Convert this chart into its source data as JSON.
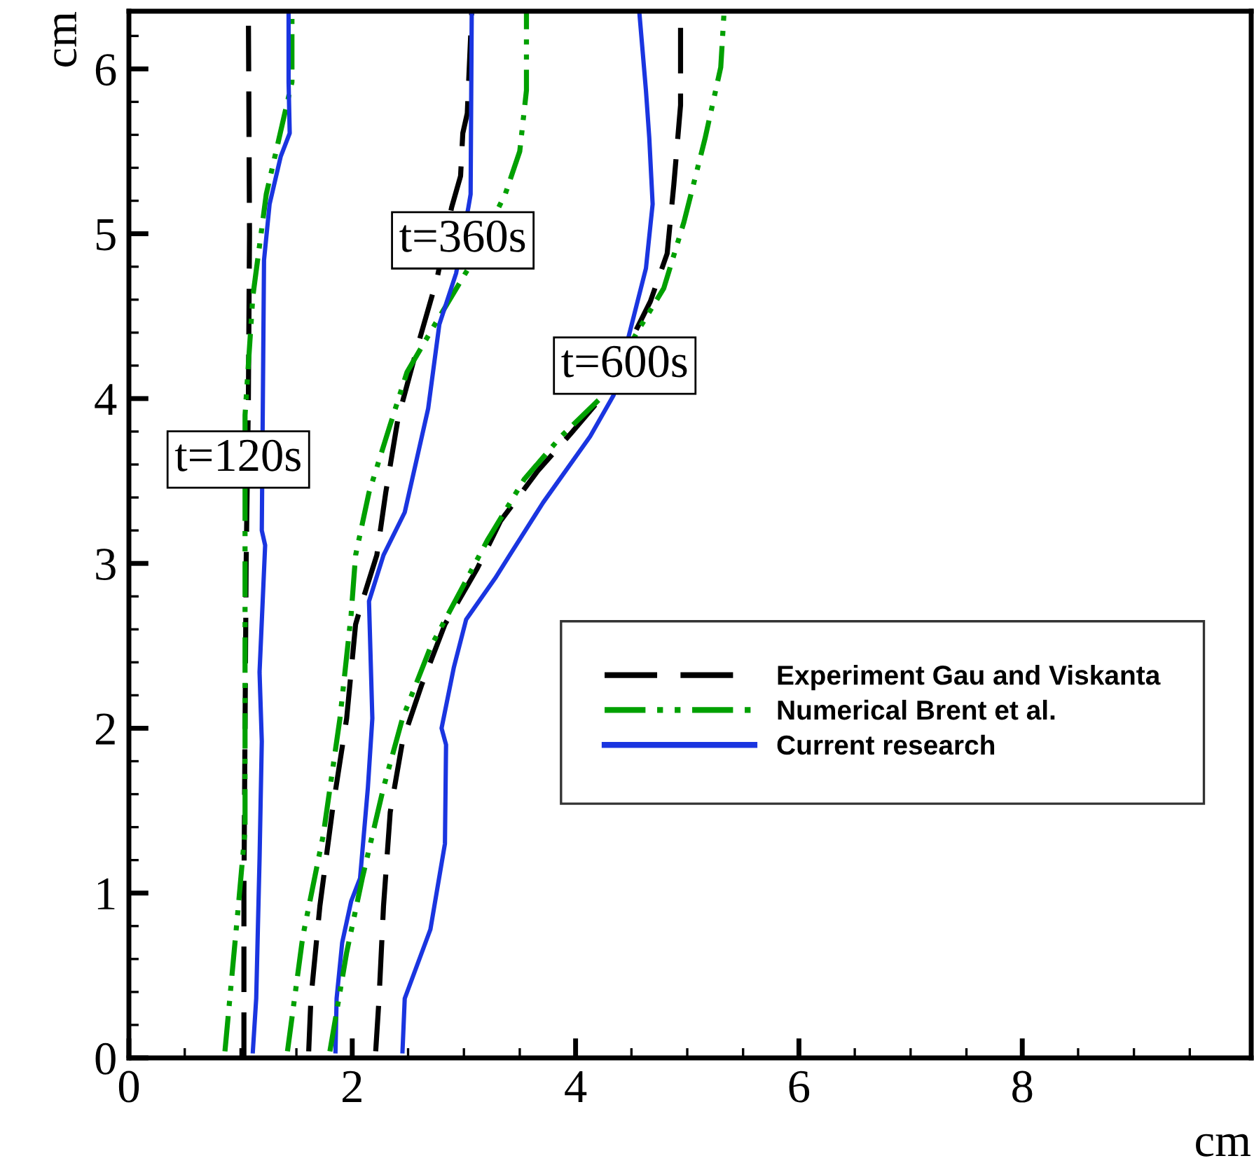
{
  "chart_data": {
    "type": "line",
    "xlabel": "cm",
    "ylabel": "cm",
    "xlim": [
      0,
      10.05
    ],
    "ylim": [
      0,
      6.35
    ],
    "xticks": [
      0,
      {
        "value": 0.5,
        "label": null
      },
      {
        "value": 1,
        "label": null
      },
      {
        "value": 1.5,
        "label": null
      },
      2,
      {
        "value": 2.5,
        "label": null
      },
      {
        "value": 3,
        "label": null
      },
      {
        "value": 3.5,
        "label": null
      },
      4,
      {
        "value": 4.5,
        "label": null
      },
      {
        "value": 5,
        "label": null
      },
      {
        "value": 5.5,
        "label": null
      },
      6,
      {
        "value": 6.5,
        "label": null
      },
      {
        "value": 7,
        "label": null
      },
      {
        "value": 7.5,
        "label": null
      },
      8,
      {
        "value": 8.5,
        "label": null
      },
      {
        "value": 9,
        "label": null
      },
      {
        "value": 9.5,
        "label": null
      }
    ],
    "yticks": [
      0,
      {
        "value": 0.2,
        "label": null
      },
      {
        "value": 0.4,
        "label": null
      },
      {
        "value": 0.6,
        "label": null
      },
      {
        "value": 0.8,
        "label": null
      },
      1,
      {
        "value": 1.2,
        "label": null
      },
      {
        "value": 1.4,
        "label": null
      },
      {
        "value": 1.6,
        "label": null
      },
      {
        "value": 1.8,
        "label": null
      },
      2,
      {
        "value": 2.2,
        "label": null
      },
      {
        "value": 2.4,
        "label": null
      },
      {
        "value": 2.6,
        "label": null
      },
      {
        "value": 2.8,
        "label": null
      },
      3,
      {
        "value": 3.2,
        "label": null
      },
      {
        "value": 3.4,
        "label": null
      },
      {
        "value": 3.6,
        "label": null
      },
      {
        "value": 3.8,
        "label": null
      },
      4,
      {
        "value": 4.2,
        "label": null
      },
      {
        "value": 4.4,
        "label": null
      },
      {
        "value": 4.6,
        "label": null
      },
      {
        "value": 4.8,
        "label": null
      },
      5,
      {
        "value": 5.2,
        "label": null
      },
      {
        "value": 5.4,
        "label": null
      },
      {
        "value": 5.6,
        "label": null
      },
      {
        "value": 5.8,
        "label": null
      },
      6,
      {
        "value": 6.2,
        "label": null
      }
    ],
    "grid": false,
    "legend": "right",
    "marker": "none",
    "annotations": [
      {
        "text": "t=120s",
        "x": 0.98,
        "y": 3.63
      },
      {
        "text": "t=360s",
        "x": 2.99,
        "y": 4.96
      },
      {
        "text": "t=600s",
        "x": 4.44,
        "y": 4.2
      }
    ],
    "series": [
      {
        "name": "Experiment Gau and Viskanta",
        "color": "#000000",
        "line_style": "dashed",
        "x": [
          1.03,
          1.03,
          1.04,
          1.05,
          1.07,
          1.08,
          1.07
        ],
        "values": [
          0,
          1,
          2,
          3,
          4,
          5,
          6.35
        ]
      },
      {
        "name": "Numerical Brent et al.",
        "color": "#00a000",
        "line_style": "dashdotdot",
        "x": [
          0.86,
          0.98,
          1.04,
          1.04,
          1.11,
          1.23,
          1.46,
          1.46
        ],
        "values": [
          0.04,
          0.92,
          1.38,
          3.9,
          4.62,
          5.24,
          5.92,
          6.35
        ]
      },
      {
        "name": "Current research",
        "color": "#1a35e0",
        "line_style": "solid",
        "x": [
          1.11,
          1.14,
          1.17,
          1.19,
          1.17,
          1.22,
          1.19,
          1.21,
          1.26,
          1.36,
          1.44,
          1.43,
          1.43
        ],
        "values": [
          0.04,
          0.36,
          1.21,
          1.92,
          2.34,
          3.11,
          3.2,
          4.84,
          5.18,
          5.47,
          5.61,
          5.92,
          6.35
        ]
      },
      {
        "color": "#000000",
        "line_style": "dashed",
        "x": [
          1.61,
          1.63,
          1.71,
          1.82,
          1.95,
          2.03,
          2.09,
          2.22,
          2.3,
          2.41,
          2.59,
          2.76,
          2.89,
          2.97,
          2.99,
          3.03,
          3.07
        ],
        "values": [
          0.04,
          0.36,
          0.92,
          1.49,
          2.06,
          2.63,
          2.77,
          3.05,
          3.43,
          3.88,
          4.33,
          4.73,
          5.16,
          5.35,
          5.61,
          5.73,
          6.35
        ]
      },
      {
        "color": "#00a000",
        "line_style": "dashdotdot",
        "x": [
          1.42,
          1.55,
          1.57,
          1.74,
          1.89,
          1.99,
          2.03,
          2.15,
          2.33,
          2.49,
          2.74,
          3.04,
          3.37,
          3.5,
          3.56,
          3.56
        ],
        "values": [
          0.04,
          0.7,
          0.78,
          1.35,
          2.06,
          2.69,
          3.05,
          3.43,
          3.82,
          4.16,
          4.45,
          4.79,
          5.24,
          5.5,
          5.87,
          6.35
        ]
      },
      {
        "color": "#1a35e0",
        "line_style": "solid",
        "x": [
          1.85,
          1.86,
          1.91,
          1.99,
          2.07,
          2.14,
          2.18,
          2.15,
          2.28,
          2.47,
          2.68,
          2.78,
          2.93,
          3.04,
          3.06,
          3.07
        ],
        "values": [
          0.04,
          0.36,
          0.7,
          0.95,
          1.09,
          1.64,
          2.06,
          2.77,
          3.05,
          3.31,
          3.94,
          4.45,
          4.76,
          5.16,
          5.24,
          6.35
        ]
      },
      {
        "color": "#000000",
        "line_style": "dashed",
        "x": [
          2.21,
          2.24,
          2.28,
          2.34,
          2.45,
          2.62,
          2.83,
          3.12,
          3.33,
          3.66,
          3.96,
          4.25,
          4.67,
          4.82,
          4.88,
          4.94,
          4.94
        ],
        "values": [
          0.04,
          0.36,
          0.92,
          1.49,
          1.92,
          2.26,
          2.63,
          2.97,
          3.26,
          3.56,
          3.79,
          4.02,
          4.59,
          4.88,
          5.3,
          5.78,
          6.35
        ]
      },
      {
        "color": "#00a000",
        "line_style": "dashdotdot",
        "x": [
          1.8,
          1.95,
          2.09,
          2.28,
          2.45,
          2.7,
          3.03,
          3.21,
          3.54,
          3.87,
          4.25,
          4.54,
          4.79,
          4.97,
          5.16,
          5.3,
          5.33
        ],
        "values": [
          0.04,
          0.64,
          1.09,
          1.64,
          2.06,
          2.49,
          2.91,
          3.14,
          3.51,
          3.77,
          4.02,
          4.39,
          4.67,
          5.07,
          5.58,
          6.01,
          6.35
        ]
      },
      {
        "color": "#1a35e0",
        "line_style": "solid",
        "x": [
          2.45,
          2.47,
          2.7,
          2.83,
          2.84,
          2.8,
          2.91,
          3.02,
          3.28,
          3.41,
          3.71,
          4.13,
          4.34,
          4.48,
          4.63,
          4.69,
          4.66,
          4.63,
          4.57
        ],
        "values": [
          0.04,
          0.36,
          0.78,
          1.3,
          1.9,
          2.0,
          2.37,
          2.66,
          2.91,
          3.05,
          3.37,
          3.77,
          4.02,
          4.39,
          4.79,
          5.18,
          5.58,
          5.87,
          6.35
        ]
      }
    ]
  }
}
